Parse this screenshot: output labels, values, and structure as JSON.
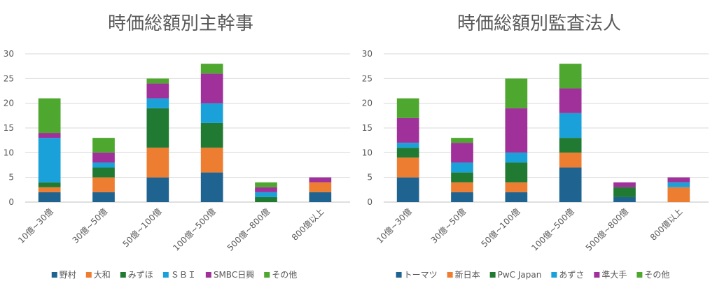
{
  "chart_data": [
    {
      "type": "bar",
      "stacked": true,
      "title": "時価総額別主幹事",
      "categories": [
        "10億~30億",
        "30億~50億",
        "50億~100億",
        "100億~500億",
        "500億~800億",
        "800億以上"
      ],
      "ylim": [
        0,
        30
      ],
      "yticks": [
        0,
        5,
        10,
        15,
        20,
        25,
        30
      ],
      "grid": true,
      "legend_position": "bottom",
      "series": [
        {
          "name": "野村",
          "color": "#1f6391",
          "values": [
            2,
            2,
            5,
            6,
            0,
            2
          ]
        },
        {
          "name": "大和",
          "color": "#ed7d31",
          "values": [
            1,
            3,
            6,
            5,
            0,
            2
          ]
        },
        {
          "name": "みずほ",
          "color": "#217a32",
          "values": [
            1,
            2,
            8,
            5,
            1,
            0
          ]
        },
        {
          "name": "ＳＢＩ",
          "color": "#1ba1d9",
          "values": [
            9,
            1,
            2,
            4,
            1,
            0
          ]
        },
        {
          "name": "SMBC日興",
          "color": "#a0309a",
          "values": [
            1,
            2,
            3,
            6,
            1,
            1
          ]
        },
        {
          "name": "その他",
          "color": "#4ea72e",
          "values": [
            7,
            3,
            1,
            2,
            1,
            0
          ]
        }
      ]
    },
    {
      "type": "bar",
      "stacked": true,
      "title": "時価総額別監査法人",
      "categories": [
        "10億~30億",
        "30億~50億",
        "50億~100億",
        "100億~500億",
        "500億~800億",
        "800億以上"
      ],
      "ylim": [
        0,
        30
      ],
      "yticks": [
        0,
        5,
        10,
        15,
        20,
        25,
        30
      ],
      "grid": true,
      "legend_position": "bottom",
      "series": [
        {
          "name": "トーマツ",
          "color": "#1f6391",
          "values": [
            5,
            2,
            2,
            7,
            1,
            0
          ]
        },
        {
          "name": "新日本",
          "color": "#ed7d31",
          "values": [
            4,
            2,
            2,
            3,
            0,
            3
          ]
        },
        {
          "name": "PwC Japan",
          "color": "#217a32",
          "values": [
            2,
            2,
            4,
            3,
            2,
            0
          ]
        },
        {
          "name": "あずさ",
          "color": "#1ba1d9",
          "values": [
            1,
            2,
            2,
            5,
            0,
            1
          ]
        },
        {
          "name": "準大手",
          "color": "#a0309a",
          "values": [
            5,
            4,
            9,
            5,
            1,
            1
          ]
        },
        {
          "name": "その他",
          "color": "#4ea72e",
          "values": [
            4,
            1,
            6,
            5,
            0,
            0
          ]
        }
      ]
    }
  ]
}
